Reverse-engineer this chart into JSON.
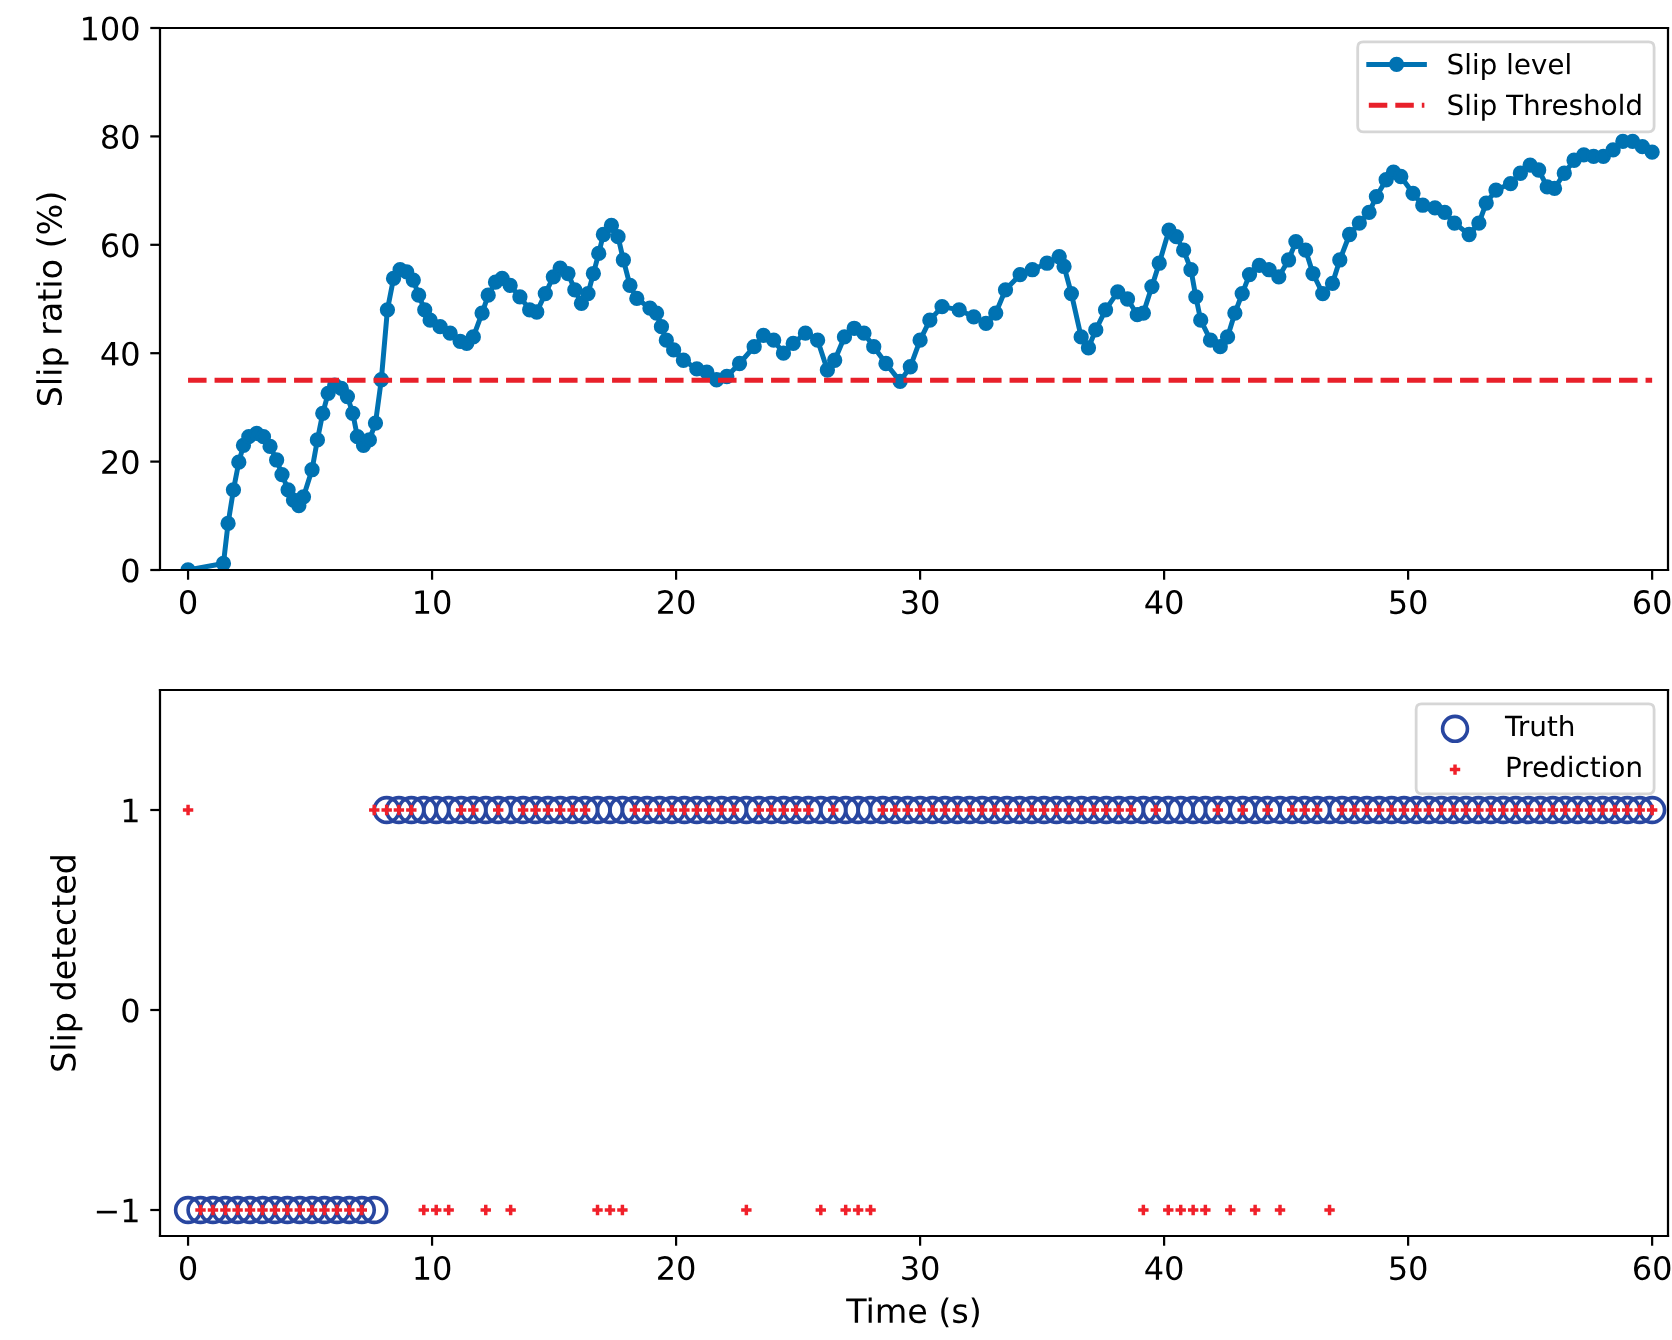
{
  "chart_data": [
    {
      "type": "line",
      "ylabel": "Slip ratio (%)",
      "xlim": [
        -1.15,
        60.65
      ],
      "ylim": [
        0,
        100
      ],
      "xticks": [
        0,
        10,
        20,
        30,
        40,
        50,
        60
      ],
      "yticks": [
        0,
        20,
        40,
        60,
        80,
        100
      ],
      "grid": false,
      "legend": "top right",
      "series": [
        {
          "name": "Slip level",
          "type": "line",
          "color": "#0072b2",
          "marker": "circle",
          "line_style": "solid",
          "x": [
            0,
            1.45,
            1.64,
            1.86,
            2.08,
            2.27,
            2.49,
            2.81,
            3.09,
            3.36,
            3.63,
            3.85,
            4.1,
            4.32,
            4.54,
            4.73,
            5.08,
            5.3,
            5.52,
            5.74,
            6.01,
            6.28,
            6.53,
            6.75,
            6.94,
            7.19,
            7.43,
            7.68,
            7.92,
            8.17,
            8.42,
            8.69,
            8.96,
            9.23,
            9.45,
            9.7,
            9.92,
            10.33,
            10.74,
            11.15,
            11.42,
            11.69,
            12.05,
            12.3,
            12.6,
            12.87,
            13.2,
            13.6,
            14.0,
            14.29,
            14.64,
            14.97,
            15.25,
            15.57,
            15.85,
            16.12,
            16.39,
            16.61,
            16.83,
            17.02,
            17.35,
            17.62,
            17.84,
            18.11,
            18.39,
            18.93,
            19.2,
            19.4,
            19.6,
            19.9,
            20.3,
            20.85,
            21.26,
            21.66,
            22.08,
            22.6,
            23.2,
            23.58,
            24.0,
            24.4,
            24.8,
            25.3,
            25.8,
            26.2,
            26.5,
            26.9,
            27.3,
            27.7,
            28.1,
            28.6,
            29.18,
            29.6,
            30.0,
            30.4,
            30.9,
            31.6,
            32.2,
            32.7,
            33.1,
            33.5,
            34.1,
            34.6,
            35.2,
            35.7,
            35.9,
            36.2,
            36.6,
            36.9,
            37.2,
            37.6,
            38.1,
            38.5,
            38.9,
            39.15,
            39.5,
            39.8,
            40.2,
            40.5,
            40.8,
            41.1,
            41.3,
            41.5,
            41.9,
            42.3,
            42.6,
            42.9,
            43.2,
            43.5,
            43.9,
            44.3,
            44.7,
            45.1,
            45.4,
            45.8,
            46.1,
            46.5,
            46.9,
            47.2,
            47.6,
            48.0,
            48.4,
            48.7,
            49.1,
            49.4,
            49.7,
            50.2,
            50.6,
            51.1,
            51.5,
            51.9,
            52.5,
            52.9,
            53.2,
            53.6,
            54.2,
            54.6,
            55.0,
            55.35,
            55.7,
            56.0,
            56.4,
            56.8,
            57.2,
            57.6,
            58.0,
            58.4,
            58.8,
            59.2,
            59.6,
            60.0
          ],
          "values": [
            0,
            1.2,
            8.6,
            14.8,
            19.9,
            23,
            24.6,
            25.2,
            24.6,
            22.8,
            20.3,
            17.6,
            14.8,
            12.9,
            11.9,
            13.5,
            18.5,
            24,
            28.9,
            32.6,
            34.1,
            33.5,
            32,
            28.9,
            24.6,
            23,
            24,
            27.1,
            35.1,
            48,
            53.8,
            55.4,
            55,
            53.5,
            50.7,
            48,
            46.1,
            44.9,
            43.7,
            42.2,
            41.8,
            43,
            47.4,
            50.7,
            53.1,
            53.8,
            52.5,
            50.4,
            48,
            47.6,
            51,
            54.1,
            55.7,
            54.7,
            51.7,
            49.2,
            51,
            54.7,
            58.4,
            61.9,
            63.6,
            61.5,
            57.2,
            52.5,
            50.1,
            48.3,
            47.4,
            44.9,
            42.4,
            40.6,
            38.7,
            37.1,
            36.5,
            35.1,
            35.7,
            38.1,
            41.2,
            43.3,
            42.4,
            40,
            41.8,
            43.7,
            42.4,
            36.9,
            38.7,
            43,
            44.6,
            43.7,
            41.2,
            38.1,
            34.8,
            37.5,
            42.4,
            46.1,
            48.6,
            48,
            46.7,
            45.5,
            47.4,
            51.7,
            54.5,
            55.4,
            56.6,
            57.8,
            56,
            51,
            43,
            41,
            44.3,
            48,
            51.3,
            50,
            47.1,
            47.4,
            52.3,
            56.6,
            62.7,
            61.5,
            59,
            55.4,
            50.4,
            46.1,
            42.4,
            41.2,
            43,
            47.4,
            51,
            54.5,
            56.2,
            55.4,
            54.1,
            57.2,
            60.6,
            59,
            54.7,
            51,
            52.9,
            57.2,
            61.9,
            64,
            66,
            68.9,
            72,
            73.4,
            72.6,
            69.5,
            67.3,
            66.8,
            66,
            64,
            61.9,
            64,
            67.7,
            70.1,
            71.3,
            73.2,
            74.7,
            73.8,
            70.7,
            70.4,
            73.2,
            75.6,
            76.6,
            76.3,
            76.3,
            77.5,
            79.1,
            79.1,
            78.1,
            77.1
          ]
        },
        {
          "name": "Slip Threshold",
          "type": "line",
          "color": "#e8202a",
          "marker": "none",
          "line_style": "dashed",
          "x": [
            0,
            60
          ],
          "values": [
            35,
            35
          ]
        }
      ]
    },
    {
      "type": "scatter",
      "xlabel": "Time (s)",
      "ylabel": "Slip detected",
      "xlim": [
        -1.15,
        60.65
      ],
      "ylim": [
        -1.13,
        1.6
      ],
      "xticks": [
        0,
        10,
        20,
        30,
        40,
        50,
        60
      ],
      "yticks": [
        {
          "value": -1,
          "label": "−1"
        },
        0,
        1
      ],
      "grid": false,
      "legend": "top right",
      "x": [
        0,
        0.51,
        1.02,
        1.53,
        2.03,
        2.54,
        3.05,
        3.56,
        4.07,
        4.58,
        5.08,
        5.59,
        6.1,
        6.61,
        7.12,
        7.63,
        8.14,
        8.64,
        9.15,
        9.66,
        10.17,
        10.68,
        11.19,
        11.69,
        12.2,
        12.71,
        13.22,
        13.73,
        14.24,
        14.75,
        15.25,
        15.76,
        16.27,
        16.78,
        17.29,
        17.8,
        18.31,
        18.81,
        19.32,
        19.83,
        20.34,
        20.85,
        21.36,
        21.86,
        22.37,
        22.88,
        23.39,
        23.9,
        24.41,
        24.92,
        25.42,
        25.93,
        26.44,
        26.95,
        27.46,
        27.97,
        28.47,
        28.98,
        29.49,
        30,
        30.51,
        31.02,
        31.53,
        32.03,
        32.54,
        33.05,
        33.56,
        34.07,
        34.58,
        35.08,
        35.59,
        36.1,
        36.61,
        37.12,
        37.63,
        38.14,
        38.64,
        39.15,
        39.66,
        40.17,
        40.68,
        41.19,
        41.69,
        42.2,
        42.71,
        43.22,
        43.73,
        44.24,
        44.75,
        45.25,
        45.76,
        46.27,
        46.78,
        47.29,
        47.8,
        48.31,
        48.81,
        49.32,
        49.83,
        50.34,
        50.85,
        51.36,
        51.86,
        52.37,
        52.88,
        53.39,
        53.9,
        54.41,
        54.92,
        55.42,
        55.93,
        56.44,
        56.95,
        57.46,
        57.97,
        58.47,
        58.98,
        59.49,
        60
      ],
      "series": [
        {
          "name": "Truth",
          "color": "#2846a0",
          "marker": "circle",
          "values": [
            -1,
            -1,
            -1,
            -1,
            -1,
            -1,
            -1,
            -1,
            -1,
            -1,
            -1,
            -1,
            -1,
            -1,
            -1,
            -1,
            1,
            1,
            1,
            1,
            1,
            1,
            1,
            1,
            1,
            1,
            1,
            1,
            1,
            1,
            1,
            1,
            1,
            1,
            1,
            1,
            1,
            1,
            1,
            1,
            1,
            1,
            1,
            1,
            1,
            1,
            1,
            1,
            1,
            1,
            1,
            1,
            1,
            1,
            1,
            1,
            1,
            1,
            1,
            1,
            1,
            1,
            1,
            1,
            1,
            1,
            1,
            1,
            1,
            1,
            1,
            1,
            1,
            1,
            1,
            1,
            1,
            1,
            1,
            1,
            1,
            1,
            1,
            1,
            1,
            1,
            1,
            1,
            1,
            1,
            1,
            1,
            1,
            1,
            1,
            1,
            1,
            1,
            1,
            1,
            1,
            1,
            1,
            1,
            1,
            1,
            1,
            1,
            1,
            1,
            1,
            1,
            1,
            1,
            1,
            1,
            1,
            1,
            1
          ]
        },
        {
          "name": "Prediction",
          "color": "#f0202a",
          "marker": "cross",
          "values": [
            1,
            -1,
            -1,
            -1,
            -1,
            -1,
            -1,
            -1,
            -1,
            -1,
            -1,
            -1,
            -1,
            -1,
            -1,
            1,
            1,
            1,
            1,
            -1,
            -1,
            -1,
            1,
            1,
            -1,
            1,
            -1,
            1,
            1,
            1,
            1,
            1,
            1,
            -1,
            -1,
            -1,
            1,
            1,
            1,
            1,
            1,
            1,
            1,
            1,
            1,
            -1,
            1,
            1,
            1,
            1,
            1,
            -1,
            1,
            -1,
            -1,
            -1,
            1,
            1,
            1,
            1,
            1,
            1,
            1,
            1,
            1,
            1,
            1,
            1,
            1,
            1,
            1,
            1,
            1,
            1,
            1,
            1,
            1,
            -1,
            1,
            -1,
            -1,
            -1,
            -1,
            1,
            -1,
            1,
            -1,
            1,
            -1,
            1,
            1,
            1,
            -1,
            1,
            1,
            1,
            1,
            1,
            1,
            1,
            1,
            1,
            1,
            1,
            1,
            1,
            1,
            1,
            1,
            1,
            1,
            1,
            1,
            1,
            1,
            1,
            1,
            1,
            1
          ]
        }
      ]
    }
  ]
}
